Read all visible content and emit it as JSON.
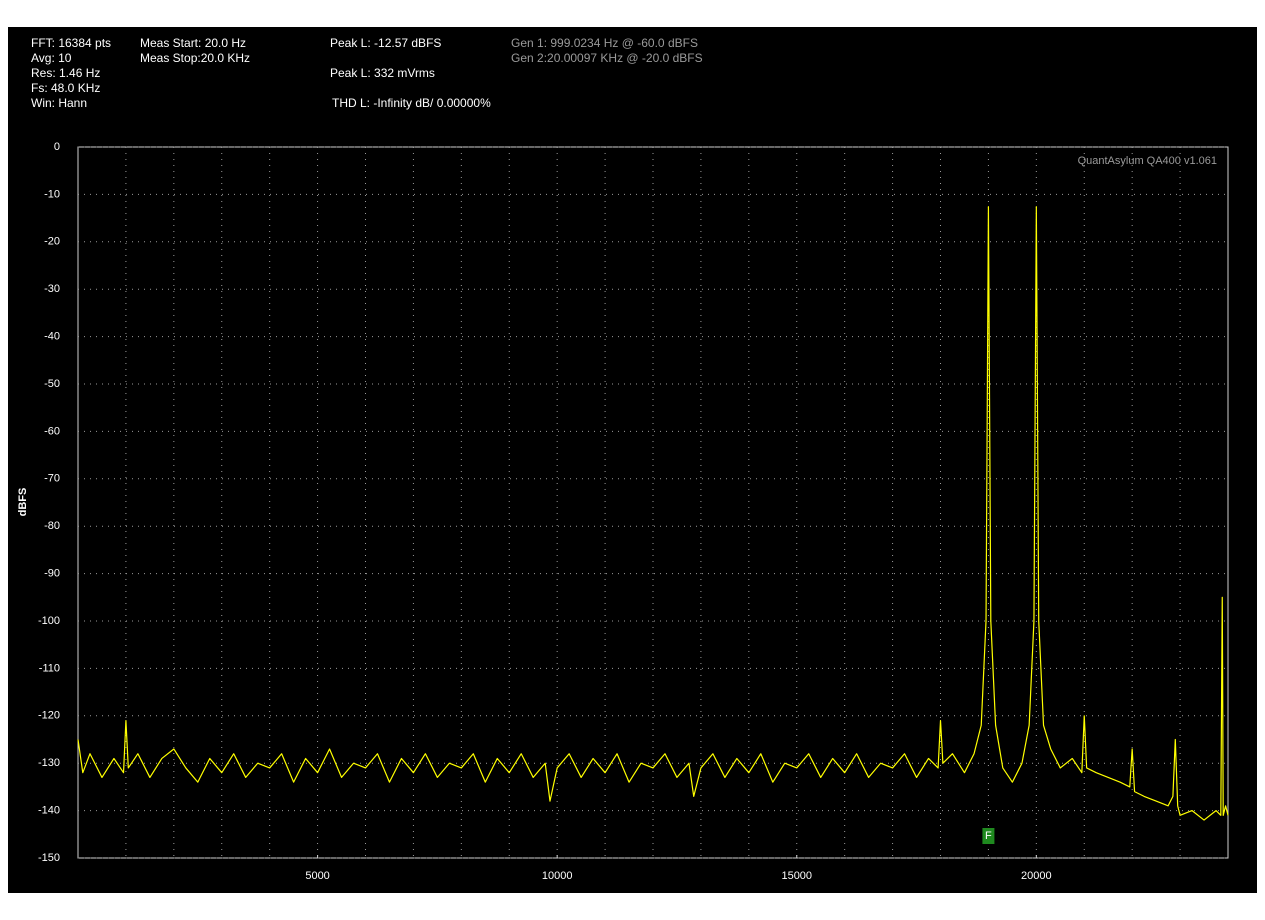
{
  "chart_data": {
    "type": "line",
    "info": [
      "FFT: 16384 pts",
      "Avg: 10",
      "Res: 1.46 Hz",
      "Fs: 48.0 KHz",
      "Win: Hann",
      "Meas Start: 20.0 Hz",
      "Meas Stop:20.0 KHz",
      "Peak L: -12.57 dBFS",
      "Peak L: 332 mVrms",
      "THD L: -Infinity dB/ 0.00000%",
      "Gen 1: 999.0234 Hz @ -60.0  dBFS",
      "Gen 2:20.00097 KHz @ -20.0  dBFS"
    ],
    "watermark": "QuantAsylum QA400 v1.061",
    "ylabel": "dBFS",
    "xlim": [
      0,
      24000
    ],
    "ylim": [
      -150,
      0
    ],
    "yticks": [
      0,
      -10,
      -20,
      -30,
      -40,
      -50,
      -60,
      -70,
      -80,
      -90,
      -100,
      -110,
      -120,
      -130,
      -140,
      -150
    ],
    "xticks": [
      5000,
      10000,
      15000,
      20000
    ],
    "xminor": [
      1000,
      2000,
      3000,
      4000,
      5000,
      6000,
      7000,
      8000,
      9000,
      10000,
      11000,
      12000,
      13000,
      14000,
      15000,
      16000,
      17000,
      18000,
      19000,
      20000,
      21000,
      22000,
      23000
    ],
    "grid": true,
    "marker": {
      "label": "F",
      "x": 19000
    },
    "series": [
      {
        "name": "L",
        "color": "#ffff00",
        "x": [
          0,
          100,
          250,
          500,
          750,
          950,
          1000,
          1050,
          1250,
          1500,
          1750,
          2000,
          2250,
          2500,
          2750,
          3000,
          3250,
          3500,
          3750,
          4000,
          4250,
          4500,
          4750,
          5000,
          5250,
          5500,
          5750,
          6000,
          6250,
          6500,
          6750,
          7000,
          7250,
          7500,
          7750,
          8000,
          8250,
          8500,
          8750,
          9000,
          9250,
          9500,
          9750,
          9850,
          10000,
          10250,
          10500,
          10750,
          11000,
          11250,
          11500,
          11750,
          12000,
          12250,
          12500,
          12750,
          12850,
          13000,
          13250,
          13500,
          13750,
          14000,
          14250,
          14500,
          14750,
          15000,
          15250,
          15500,
          15750,
          16000,
          16250,
          16500,
          16750,
          17000,
          17250,
          17500,
          17750,
          17950,
          18000,
          18050,
          18250,
          18500,
          18700,
          18850,
          18950,
          19000,
          19050,
          19150,
          19300,
          19500,
          19700,
          19850,
          19950,
          20000,
          20050,
          20150,
          20300,
          20500,
          20750,
          20950,
          21000,
          21050,
          21250,
          21500,
          21750,
          21950,
          22000,
          22050,
          22250,
          22500,
          22750,
          22850,
          22900,
          22950,
          23000,
          23250,
          23500,
          23750,
          23850,
          23880,
          23900,
          23950,
          24000
        ],
        "values": [
          -125,
          -132,
          -128,
          -133,
          -129,
          -132,
          -121,
          -131,
          -128,
          -133,
          -129,
          -127,
          -131,
          -134,
          -129,
          -132,
          -128,
          -133,
          -130,
          -131,
          -128,
          -134,
          -129,
          -132,
          -127,
          -133,
          -130,
          -131,
          -128,
          -134,
          -129,
          -132,
          -128,
          -133,
          -130,
          -131,
          -128,
          -134,
          -129,
          -132,
          -128,
          -133,
          -130,
          -138,
          -131,
          -128,
          -133,
          -129,
          -132,
          -128,
          -134,
          -130,
          -131,
          -128,
          -133,
          -130,
          -137,
          -131,
          -128,
          -133,
          -129,
          -132,
          -128,
          -134,
          -130,
          -131,
          -128,
          -133,
          -129,
          -132,
          -128,
          -133,
          -130,
          -131,
          -128,
          -133,
          -129,
          -131,
          -121,
          -130,
          -128,
          -132,
          -128,
          -122,
          -100,
          -12.6,
          -100,
          -122,
          -131,
          -134,
          -130,
          -122,
          -100,
          -12.6,
          -100,
          -122,
          -127,
          -131,
          -129,
          -132,
          -120,
          -131,
          -132,
          -133,
          -134,
          -135,
          -127,
          -136,
          -137,
          -138,
          -139,
          -137,
          -125,
          -139,
          -141,
          -140,
          -142,
          -140,
          -141,
          -95,
          -141,
          -139,
          -141
        ]
      }
    ]
  }
}
